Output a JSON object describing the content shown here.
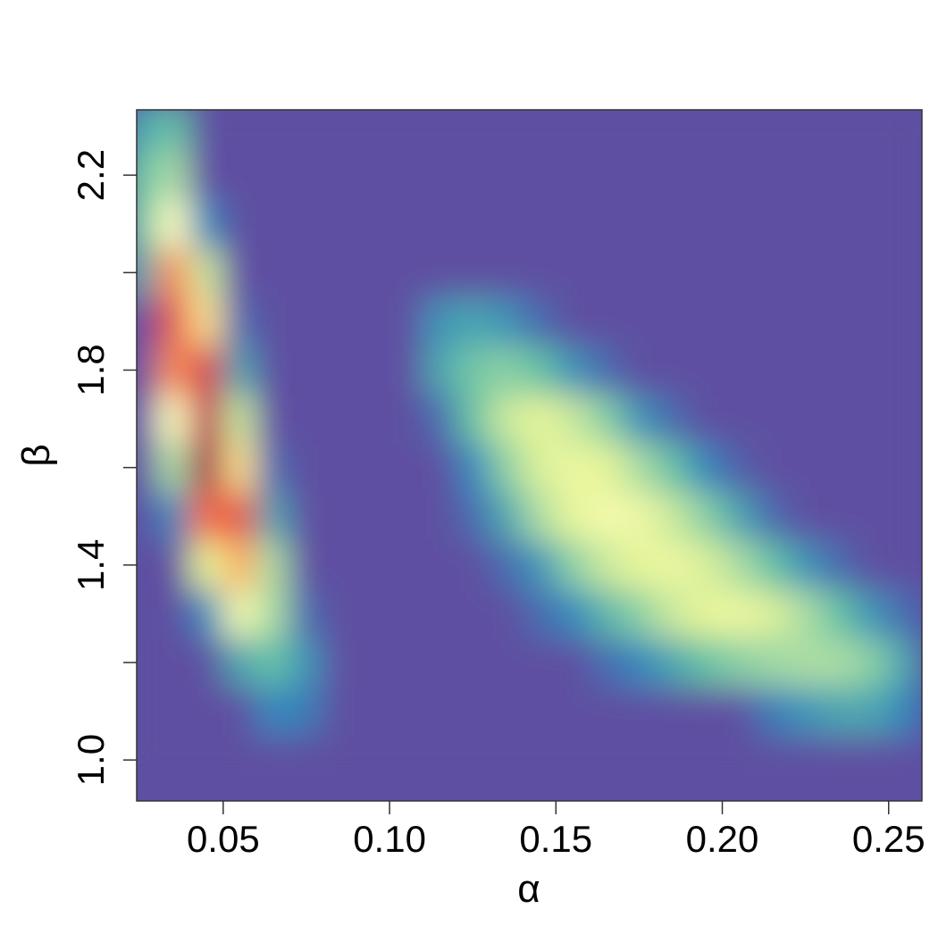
{
  "chart_data": {
    "type": "heatmap",
    "xlabel": "α",
    "ylabel": "β",
    "xlim": [
      0.024,
      0.26
    ],
    "ylim": [
      0.916,
      2.334
    ],
    "xticks": [
      0.05,
      {
        "value": 0.1,
        "label": "0.10"
      },
      0.15,
      {
        "value": 0.2,
        "label": "0.20"
      },
      0.25
    ],
    "yticks": [
      {
        "value": 1.0,
        "label": "1.0"
      },
      1.4,
      1.8,
      2.2
    ],
    "yminor_ticks": [
      1.2,
      1.6,
      2.0
    ],
    "colormap": [
      "#5e4fa2",
      "#3288bd",
      "#66c2a5",
      "#abdda4",
      "#e6f598",
      "#ffffbf",
      "#fee08b",
      "#fdae61",
      "#f46d43",
      "#d53e4f",
      "#9e0142"
    ],
    "x": [
      0.025,
      0.035,
      0.045,
      0.055,
      0.065,
      0.075,
      0.085,
      0.095,
      0.105,
      0.115,
      0.125,
      0.135,
      0.145,
      0.155,
      0.165,
      0.175,
      0.185,
      0.195,
      0.205,
      0.215,
      0.225,
      0.235,
      0.245,
      0.255
    ],
    "y": [
      1.0,
      1.1,
      1.2,
      1.3,
      1.4,
      1.5,
      1.6,
      1.7,
      1.8,
      1.9,
      2.0,
      2.1,
      2.2,
      2.3
    ],
    "z": [
      [
        0,
        0,
        0,
        0,
        0,
        0,
        0,
        0,
        0,
        0,
        0,
        0,
        0,
        0,
        0,
        0,
        0,
        0,
        0,
        0,
        0,
        0,
        0,
        0
      ],
      [
        0,
        0,
        0,
        0,
        0.1,
        0.08,
        0,
        0,
        0,
        0,
        0,
        0,
        0,
        0,
        0,
        0,
        0,
        0,
        0,
        0.08,
        0.12,
        0.15,
        0.15,
        0.1
      ],
      [
        0,
        0,
        0,
        0.15,
        0.2,
        0.12,
        0,
        0,
        0,
        0,
        0,
        0,
        0,
        0,
        0.05,
        0.1,
        0.15,
        0.2,
        0.25,
        0.28,
        0.3,
        0.3,
        0.25,
        0.15
      ],
      [
        0,
        0,
        0.1,
        0.45,
        0.3,
        0.05,
        0,
        0,
        0,
        0,
        0,
        0,
        0.05,
        0.1,
        0.18,
        0.25,
        0.35,
        0.4,
        0.42,
        0.38,
        0.3,
        0.2,
        0.12,
        0.05
      ],
      [
        0,
        0,
        0.4,
        0.7,
        0.3,
        0,
        0,
        0,
        0,
        0,
        0,
        0.05,
        0.12,
        0.25,
        0.35,
        0.4,
        0.42,
        0.38,
        0.3,
        0.2,
        0.12,
        0.05,
        0,
        0
      ],
      [
        0,
        0.1,
        0.8,
        0.85,
        0.15,
        0,
        0,
        0,
        0,
        0,
        0.05,
        0.15,
        0.3,
        0.4,
        0.45,
        0.43,
        0.35,
        0.25,
        0.15,
        0.05,
        0,
        0,
        0,
        0
      ],
      [
        0,
        0.3,
        1.0,
        0.6,
        0.05,
        0,
        0,
        0,
        0,
        0,
        0.1,
        0.25,
        0.38,
        0.42,
        0.4,
        0.3,
        0.2,
        0.1,
        0.03,
        0,
        0,
        0,
        0,
        0
      ],
      [
        0,
        0.5,
        0.95,
        0.35,
        0,
        0,
        0,
        0,
        0,
        0.05,
        0.2,
        0.35,
        0.4,
        0.35,
        0.25,
        0.12,
        0.05,
        0,
        0,
        0,
        0,
        0,
        0,
        0
      ],
      [
        0,
        0.75,
        0.9,
        0.15,
        0,
        0,
        0,
        0,
        0,
        0.15,
        0.22,
        0.25,
        0.2,
        0.12,
        0.05,
        0,
        0,
        0,
        0,
        0,
        0,
        0,
        0,
        0
      ],
      [
        0,
        0.85,
        0.6,
        0.05,
        0,
        0,
        0,
        0,
        0,
        0.12,
        0.15,
        0.12,
        0.05,
        0,
        0,
        0,
        0,
        0,
        0,
        0,
        0,
        0,
        0,
        0
      ],
      [
        0.15,
        0.75,
        0.35,
        0,
        0,
        0,
        0,
        0,
        0,
        0,
        0,
        0,
        0,
        0,
        0,
        0,
        0,
        0,
        0,
        0,
        0,
        0,
        0,
        0
      ],
      [
        0.2,
        0.5,
        0.1,
        0,
        0,
        0,
        0,
        0,
        0,
        0,
        0,
        0,
        0,
        0,
        0,
        0,
        0,
        0,
        0,
        0,
        0,
        0,
        0,
        0
      ],
      [
        0.2,
        0.3,
        0,
        0,
        0,
        0,
        0,
        0,
        0,
        0,
        0,
        0,
        0,
        0,
        0,
        0,
        0,
        0,
        0,
        0,
        0,
        0,
        0,
        0
      ],
      [
        0.15,
        0.2,
        0,
        0,
        0,
        0,
        0,
        0,
        0,
        0,
        0,
        0,
        0,
        0,
        0,
        0,
        0,
        0,
        0,
        0,
        0,
        0,
        0,
        0
      ]
    ]
  }
}
